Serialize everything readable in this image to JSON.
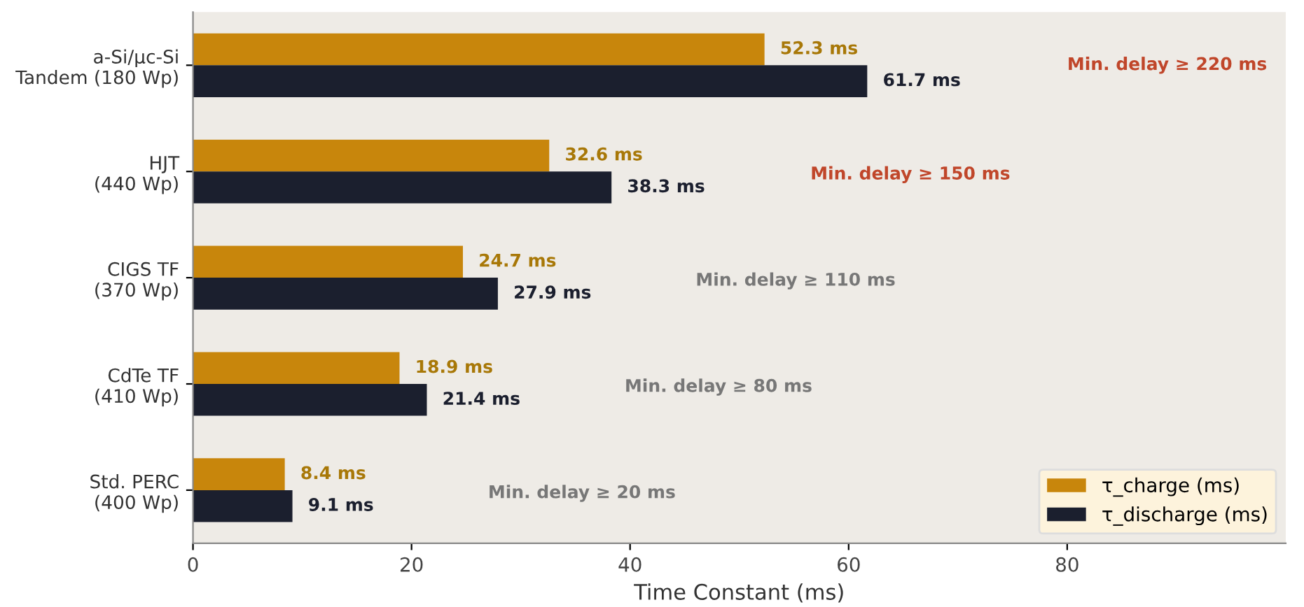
{
  "chart_data": {
    "type": "bar",
    "orientation": "horizontal",
    "xlabel": "Time Constant (ms)",
    "categories": [
      "a-Si/μc-Si\nTandem (180 Wp)",
      "HJT\n(440 Wp)",
      "CIGS TF\n(370 Wp)",
      "CdTe TF\n(410 Wp)",
      "Std. PERC\n(400 Wp)"
    ],
    "series": [
      {
        "name": "τ_charge (ms)",
        "color": "#c8860c",
        "values": [
          52.3,
          32.6,
          24.7,
          18.9,
          8.4
        ],
        "value_labels": [
          "52.3 ms",
          "32.6 ms",
          "24.7 ms",
          "18.9 ms",
          "8.4 ms"
        ]
      },
      {
        "name": "τ_discharge (ms)",
        "color": "#1b1f2e",
        "values": [
          61.7,
          38.3,
          27.9,
          21.4,
          9.1
        ],
        "value_labels": [
          "61.7 ms",
          "38.3 ms",
          "27.9 ms",
          "21.4 ms",
          "9.1 ms"
        ]
      }
    ],
    "annotations": [
      "Min. delay ≥ 220 ms",
      "Min. delay ≥ 150 ms",
      "Min. delay ≥ 110 ms",
      "Min. delay ≥ 80 ms",
      "Min. delay ≥ 20 ms"
    ],
    "xlim": [
      0,
      100
    ],
    "xticks": [
      0,
      20,
      40,
      60,
      80
    ],
    "grid": false,
    "legend": "bottom right"
  }
}
